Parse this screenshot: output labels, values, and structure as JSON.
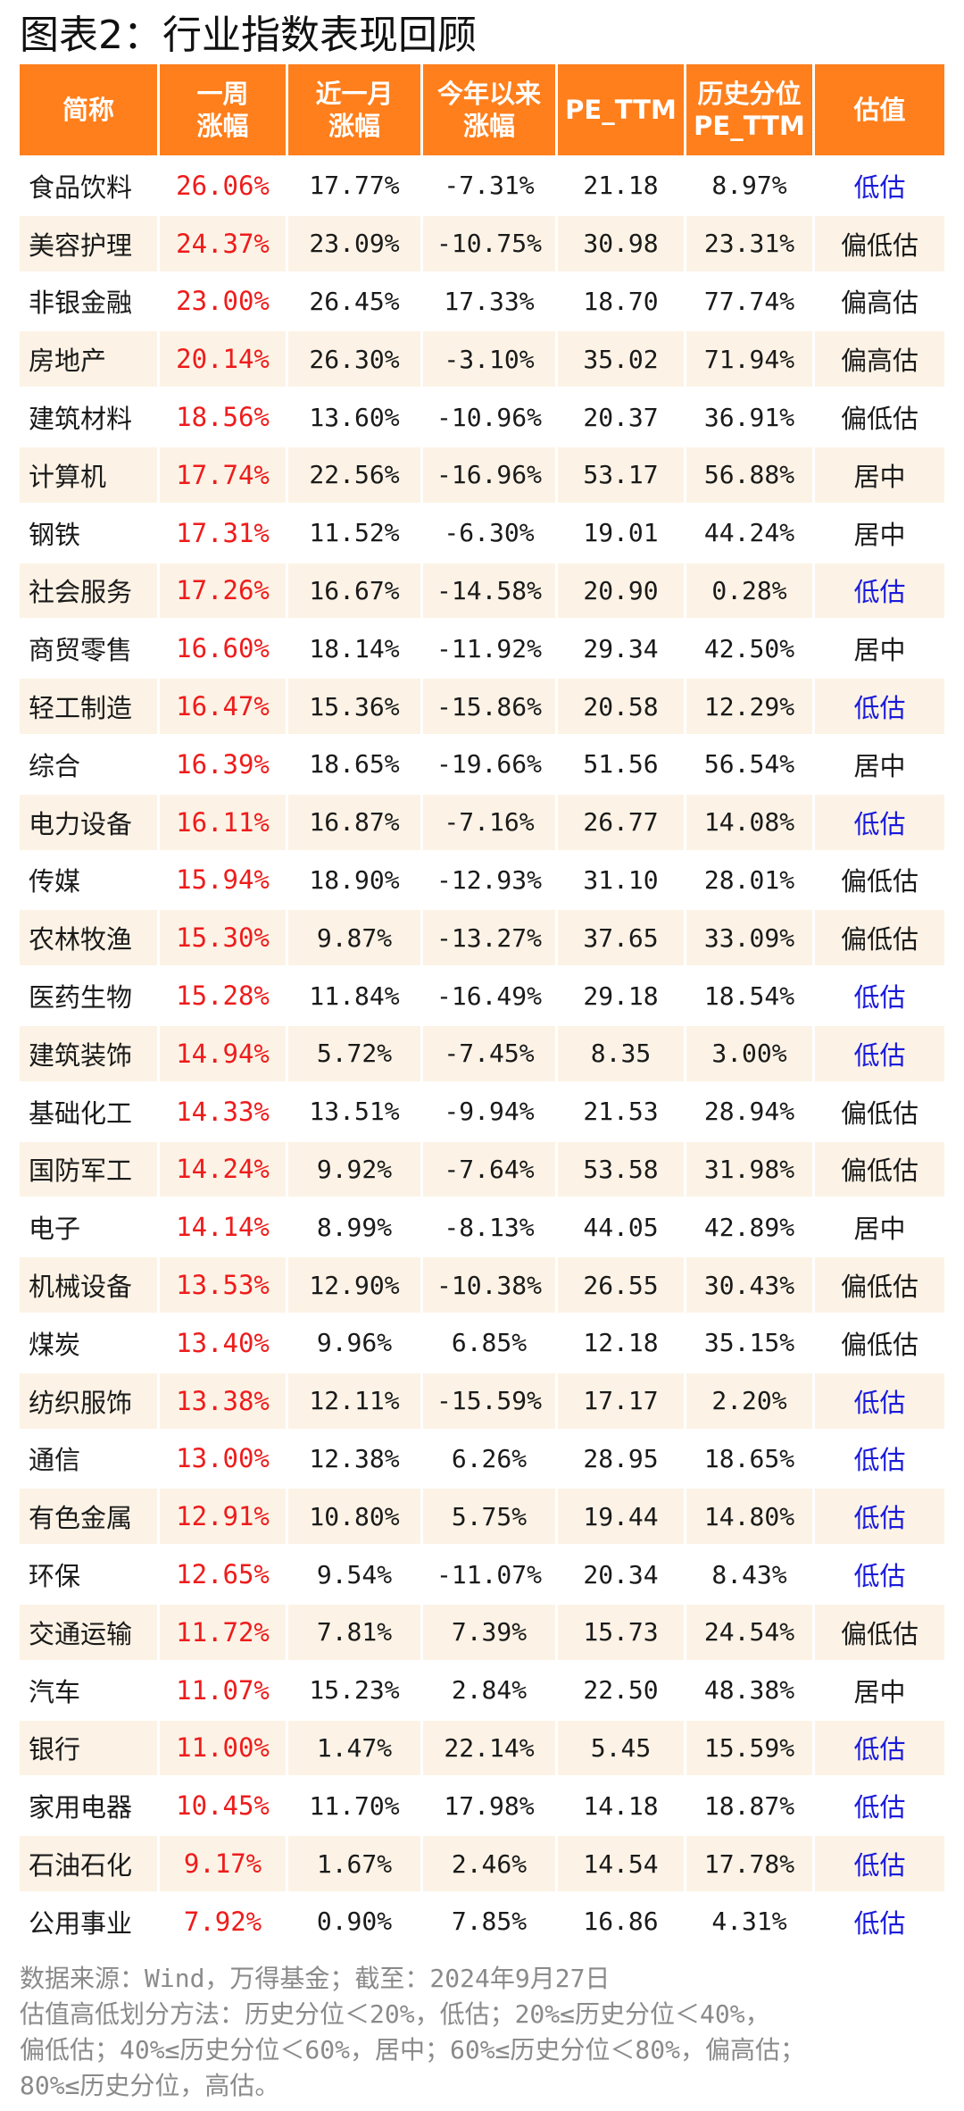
{
  "title": "图表2：行业指数表现回顾",
  "colors": {
    "header_bg": "#ff7f1c",
    "stripe_bg": "#fcf3e6",
    "red_text": "#ee1c1c",
    "blue_text": "#1a1adb"
  },
  "table": {
    "headers": [
      [
        "简称",
        ""
      ],
      [
        "一周",
        "涨幅"
      ],
      [
        "近一月",
        "涨幅"
      ],
      [
        "今年以来",
        "涨幅"
      ],
      [
        "PE_TTM",
        ""
      ],
      [
        "历史分位",
        "PE_TTM"
      ],
      [
        "估值",
        ""
      ]
    ],
    "rows": [
      [
        "食品饮料",
        "26.06%",
        "17.77%",
        "-7.31%",
        "21.18",
        "8.97%",
        "低估"
      ],
      [
        "美容护理",
        "24.37%",
        "23.09%",
        "-10.75%",
        "30.98",
        "23.31%",
        "偏低估"
      ],
      [
        "非银金融",
        "23.00%",
        "26.45%",
        "17.33%",
        "18.70",
        "77.74%",
        "偏高估"
      ],
      [
        "房地产",
        "20.14%",
        "26.30%",
        "-3.10%",
        "35.02",
        "71.94%",
        "偏高估"
      ],
      [
        "建筑材料",
        "18.56%",
        "13.60%",
        "-10.96%",
        "20.37",
        "36.91%",
        "偏低估"
      ],
      [
        "计算机",
        "17.74%",
        "22.56%",
        "-16.96%",
        "53.17",
        "56.88%",
        "居中"
      ],
      [
        "钢铁",
        "17.31%",
        "11.52%",
        "-6.30%",
        "19.01",
        "44.24%",
        "居中"
      ],
      [
        "社会服务",
        "17.26%",
        "16.67%",
        "-14.58%",
        "20.90",
        "0.28%",
        "低估"
      ],
      [
        "商贸零售",
        "16.60%",
        "18.14%",
        "-11.92%",
        "29.34",
        "42.50%",
        "居中"
      ],
      [
        "轻工制造",
        "16.47%",
        "15.36%",
        "-15.86%",
        "20.58",
        "12.29%",
        "低估"
      ],
      [
        "综合",
        "16.39%",
        "18.65%",
        "-19.66%",
        "51.56",
        "56.54%",
        "居中"
      ],
      [
        "电力设备",
        "16.11%",
        "16.87%",
        "-7.16%",
        "26.77",
        "14.08%",
        "低估"
      ],
      [
        "传媒",
        "15.94%",
        "18.90%",
        "-12.93%",
        "31.10",
        "28.01%",
        "偏低估"
      ],
      [
        "农林牧渔",
        "15.30%",
        "9.87%",
        "-13.27%",
        "37.65",
        "33.09%",
        "偏低估"
      ],
      [
        "医药生物",
        "15.28%",
        "11.84%",
        "-16.49%",
        "29.18",
        "18.54%",
        "低估"
      ],
      [
        "建筑装饰",
        "14.94%",
        "5.72%",
        "-7.45%",
        "8.35",
        "3.00%",
        "低估"
      ],
      [
        "基础化工",
        "14.33%",
        "13.51%",
        "-9.94%",
        "21.53",
        "28.94%",
        "偏低估"
      ],
      [
        "国防军工",
        "14.24%",
        "9.92%",
        "-7.64%",
        "53.58",
        "31.98%",
        "偏低估"
      ],
      [
        "电子",
        "14.14%",
        "8.99%",
        "-8.13%",
        "44.05",
        "42.89%",
        "居中"
      ],
      [
        "机械设备",
        "13.53%",
        "12.90%",
        "-10.38%",
        "26.55",
        "30.43%",
        "偏低估"
      ],
      [
        "煤炭",
        "13.40%",
        "9.96%",
        "6.85%",
        "12.18",
        "35.15%",
        "偏低估"
      ],
      [
        "纺织服饰",
        "13.38%",
        "12.11%",
        "-15.59%",
        "17.17",
        "2.20%",
        "低估"
      ],
      [
        "通信",
        "13.00%",
        "12.38%",
        "6.26%",
        "28.95",
        "18.65%",
        "低估"
      ],
      [
        "有色金属",
        "12.91%",
        "10.80%",
        "5.75%",
        "19.44",
        "14.80%",
        "低估"
      ],
      [
        "环保",
        "12.65%",
        "9.54%",
        "-11.07%",
        "20.34",
        "8.43%",
        "低估"
      ],
      [
        "交通运输",
        "11.72%",
        "7.81%",
        "7.39%",
        "15.73",
        "24.54%",
        "偏低估"
      ],
      [
        "汽车",
        "11.07%",
        "15.23%",
        "2.84%",
        "22.50",
        "48.38%",
        "居中"
      ],
      [
        "银行",
        "11.00%",
        "1.47%",
        "22.14%",
        "5.45",
        "15.59%",
        "低估"
      ],
      [
        "家用电器",
        "10.45%",
        "11.70%",
        "17.98%",
        "14.18",
        "18.87%",
        "低估"
      ],
      [
        "石油石化",
        "9.17%",
        "1.67%",
        "2.46%",
        "14.54",
        "17.78%",
        "低估"
      ],
      [
        "公用事业",
        "7.92%",
        "0.90%",
        "7.85%",
        "16.86",
        "4.31%",
        "低估"
      ]
    ]
  },
  "notes": [
    "数据来源：Wind，万得基金；截至：2024年9月27日",
    "估值高低划分方法：历史分位＜20%，低估；20%≤历史分位＜40%，",
    "偏低估；40%≤历史分位＜60%，居中；60%≤历史分位＜80%，偏高估；",
    "80%≤历史分位，高估。"
  ]
}
